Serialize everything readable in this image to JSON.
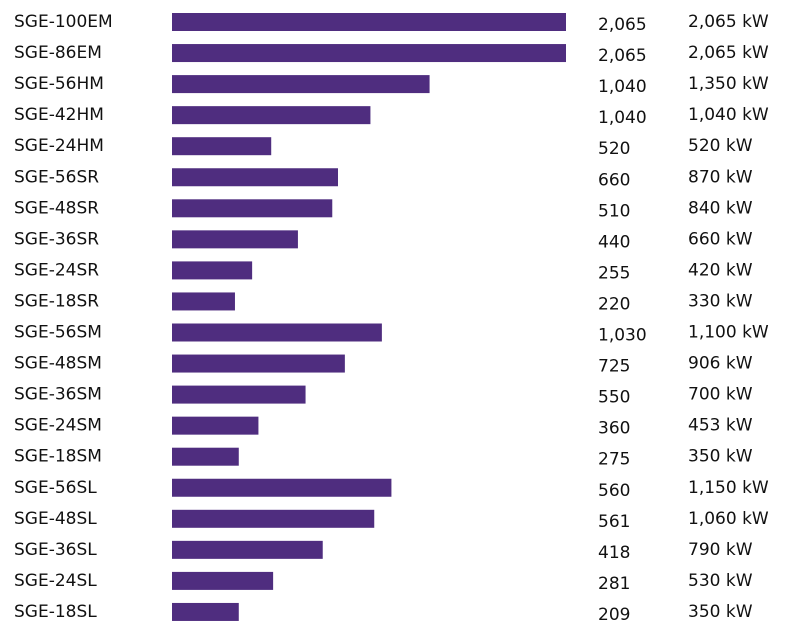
{
  "chart_data": {
    "type": "bar",
    "orientation": "horizontal",
    "color": "#4f2d7f",
    "categories": [
      "SGE-100EM",
      "SGE-86EM",
      "SGE-56HM",
      "SGE-42HM",
      "SGE-24HM",
      "SGE-56SR",
      "SGE-48SR",
      "SGE-36SR",
      "SGE-24SR",
      "SGE-18SR",
      "SGE-56SM",
      "SGE-48SM",
      "SGE-36SM",
      "SGE-24SM",
      "SGE-18SM",
      "SGE-56SL",
      "SGE-48SL",
      "SGE-36SL",
      "SGE-24SL",
      "SGE-18SL"
    ],
    "columns": [
      {
        "values": [
          2065,
          2065,
          1040,
          1040,
          520,
          660,
          510,
          440,
          255,
          220,
          1030,
          725,
          550,
          360,
          275,
          560,
          561,
          418,
          281,
          209
        ],
        "value_labels": [
          "2,065",
          "2,065",
          "1,040",
          "1,040",
          "520",
          "660",
          "510",
          "440",
          "255",
          "220",
          "1,030",
          "725",
          "550",
          "360",
          "275",
          "560",
          "561",
          "418",
          "281",
          "209"
        ]
      },
      {
        "values": [
          2065,
          2065,
          1350,
          1040,
          520,
          870,
          840,
          660,
          420,
          330,
          1100,
          906,
          700,
          453,
          350,
          1150,
          1060,
          790,
          530,
          350
        ],
        "value_labels": [
          "2,065 kW",
          "2,065 kW",
          "1,350 kW",
          "1,040 kW",
          "520 kW",
          "870 kW",
          "840 kW",
          "660 kW",
          "420 kW",
          "330 kW",
          "1,100 kW",
          "906 kW",
          "700 kW",
          "453 kW",
          "350 kW",
          "1,150 kW",
          "1,060 kW",
          "790 kW",
          "530 kW",
          "350 kW"
        ]
      }
    ],
    "xlim": [
      0,
      2065
    ]
  }
}
